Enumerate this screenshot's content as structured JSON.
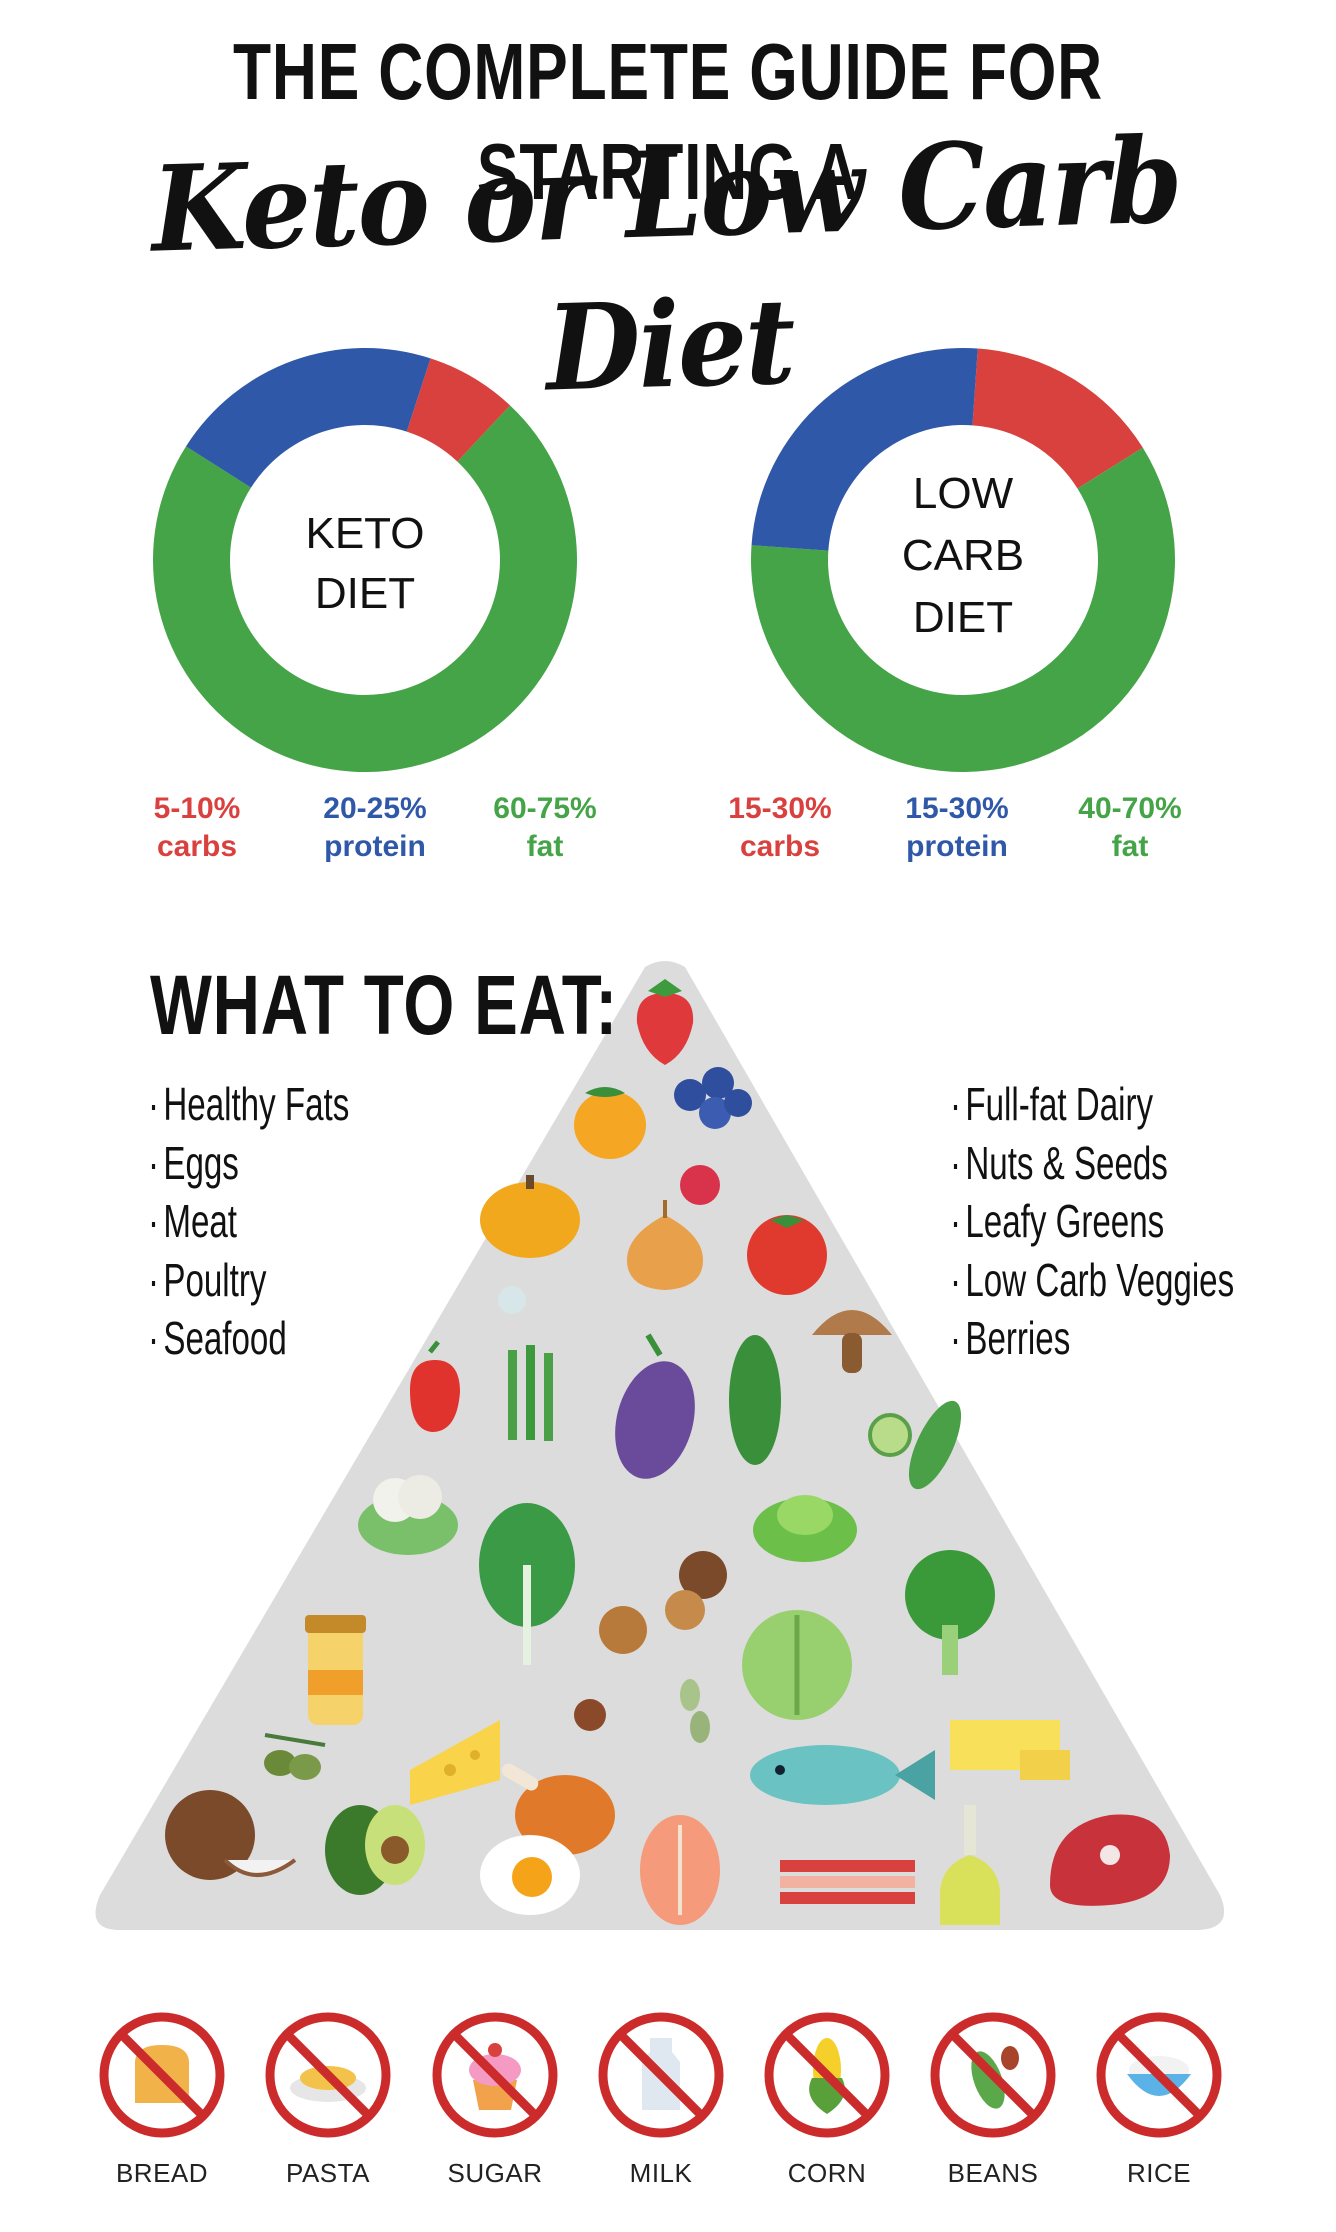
{
  "title": {
    "line1": "THE COMPLETE GUIDE FOR STARTING A",
    "line2": "Keto or Low Carb Diet"
  },
  "colors": {
    "carbs": "#d9413f",
    "protein": "#2f58a8",
    "fat": "#44a447",
    "pyramid": "#dcdcdc",
    "ban": "#cc2b2b"
  },
  "chart_data": [
    {
      "type": "pie",
      "center_label": [
        "KETO",
        "DIET"
      ],
      "slices": [
        {
          "label": "carbs",
          "range": "5-10%",
          "value": 7
        },
        {
          "label": "fat",
          "range": "60-75%",
          "value": 72
        },
        {
          "label": "protein",
          "range": "20-25%",
          "value": 21
        }
      ]
    },
    {
      "type": "pie",
      "center_label": [
        "LOW",
        "CARB",
        "DIET"
      ],
      "slices": [
        {
          "label": "carbs",
          "range": "15-30%",
          "value": 15
        },
        {
          "label": "fat",
          "range": "40-70%",
          "value": 60
        },
        {
          "label": "protein",
          "range": "15-30%",
          "value": 25
        }
      ]
    }
  ],
  "legends": {
    "keto": [
      {
        "pct": "5-10%",
        "name": "carbs"
      },
      {
        "pct": "20-25%",
        "name": "protein"
      },
      {
        "pct": "60-75%",
        "name": "fat"
      }
    ],
    "lowcarb": [
      {
        "pct": "15-30%",
        "name": "carbs"
      },
      {
        "pct": "15-30%",
        "name": "protein"
      },
      {
        "pct": "40-70%",
        "name": "fat"
      }
    ]
  },
  "what_to_eat": {
    "heading": "WHAT TO EAT:",
    "left": [
      "Healthy Fats",
      "Eggs",
      "Meat",
      "Poultry",
      "Seafood"
    ],
    "right": [
      "Full-fat Dairy",
      "Nuts & Seeds",
      "Leafy Greens",
      "Low Carb Veggies",
      "Berries"
    ]
  },
  "avoid": [
    {
      "label": "BREAD",
      "icon": "bread-icon"
    },
    {
      "label": "PASTA",
      "icon": "pasta-icon"
    },
    {
      "label": "SUGAR",
      "icon": "cupcake-icon"
    },
    {
      "label": "MILK",
      "icon": "milk-bottle-icon"
    },
    {
      "label": "CORN",
      "icon": "corn-icon"
    },
    {
      "label": "BEANS",
      "icon": "beans-icon"
    },
    {
      "label": "RICE",
      "icon": "rice-bowl-icon"
    }
  ]
}
